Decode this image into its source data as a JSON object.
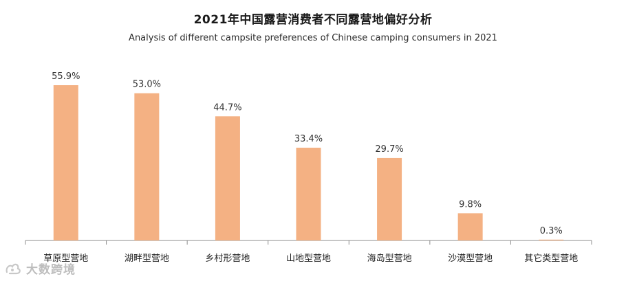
{
  "chart_data": {
    "type": "bar",
    "title": "2021年中国露营消费者不同露营地偏好分析",
    "subtitle": "Analysis of different campsite preferences of Chinese camping consumers in 2021",
    "categories": [
      "草原型营地",
      "湖畔型营地",
      "乡村形营地",
      "山地型营地",
      "海岛型营地",
      "沙漠型营地",
      "其它类型营地"
    ],
    "values": [
      55.9,
      53.0,
      44.7,
      33.4,
      29.7,
      9.8,
      0.3
    ],
    "value_labels": [
      "55.9%",
      "53.0%",
      "44.7%",
      "33.4%",
      "29.7%",
      "9.8%",
      "0.3%"
    ],
    "unit": "%",
    "xlabel": "",
    "ylabel": "",
    "ylim": [
      0,
      60
    ],
    "grid": false,
    "legend": "none",
    "bar_color": "#f4b183",
    "axis_color": "#8c8c8c"
  },
  "watermark": {
    "text": "大数跨境"
  }
}
